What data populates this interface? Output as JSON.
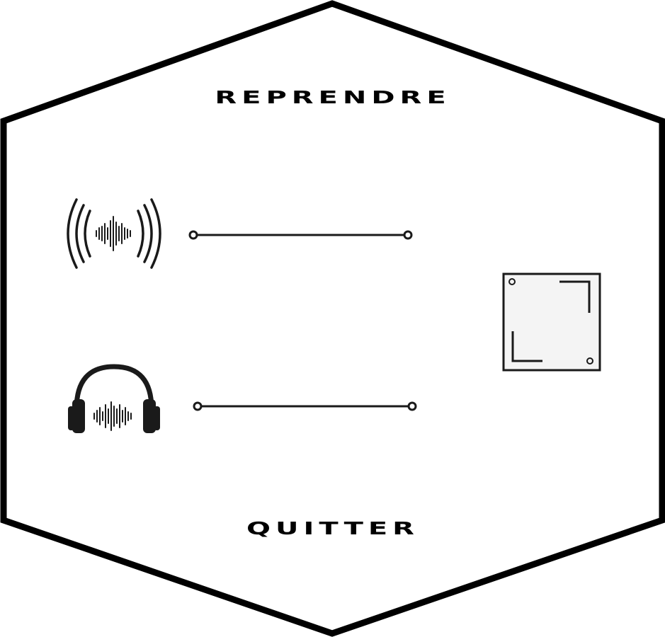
{
  "menu": {
    "resume_label": "REPRENDRE",
    "quit_label": "QUITTER"
  },
  "volume": {
    "music": {
      "icon": "sound-waves-icon",
      "level": 0.0
    },
    "sfx": {
      "icon": "headphones-icon",
      "level": 0.0
    }
  },
  "fullscreen": {
    "icon": "fullscreen-icon"
  },
  "colors": {
    "stroke": "#1a1a1a",
    "background": "#ffffff",
    "button_fill": "#f4f4f4"
  }
}
